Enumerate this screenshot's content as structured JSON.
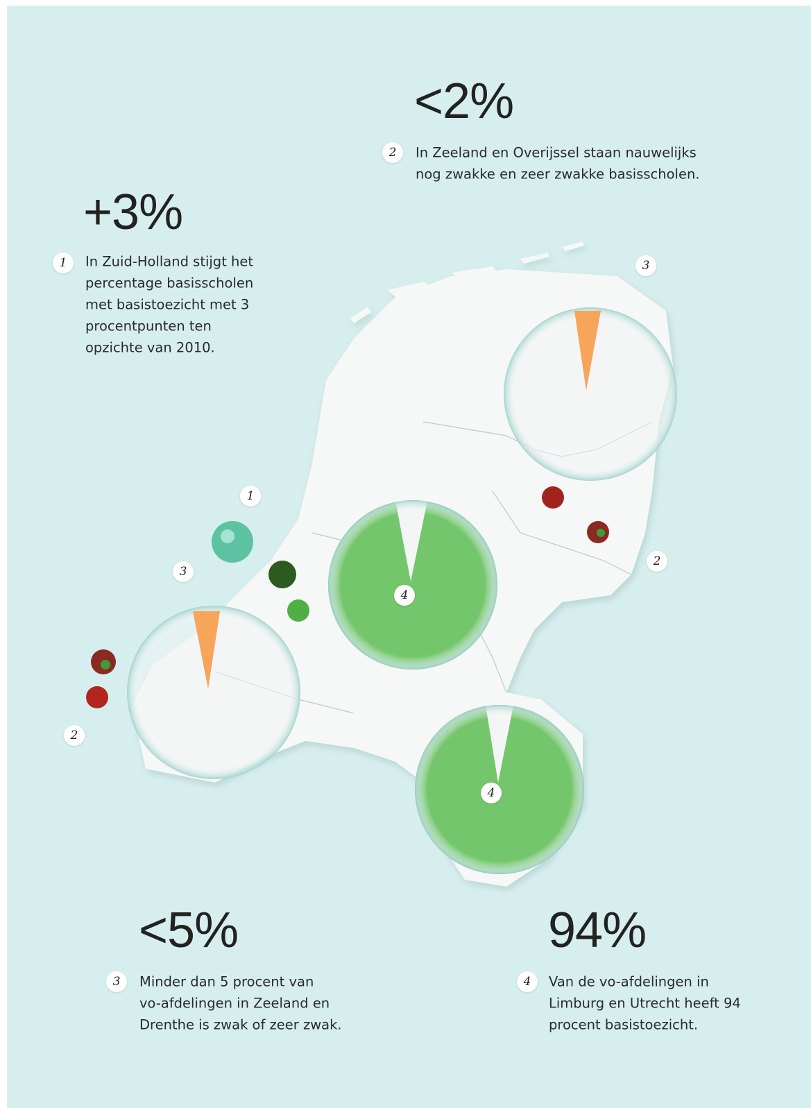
{
  "callouts": [
    {
      "figure": "+3%",
      "marker": "1",
      "lines": [
        "In Zuid-Holland stijgt het",
        "percentage basisscholen",
        "met basistoezicht met 3",
        "procentpunten ten",
        "opzichte van 2010."
      ]
    },
    {
      "figure": "<2%",
      "marker": "2",
      "lines": [
        "In Zeeland en Overijssel staan nauwelijks",
        "nog zwakke en zeer zwakke basisscholen."
      ]
    },
    {
      "figure": "<5%",
      "marker": "3",
      "lines": [
        "Minder dan 5 procent van",
        "vo-afdelingen in Zeeland en",
        "Drenthe is zwak of zeer zwak."
      ]
    },
    {
      "figure": "94%",
      "marker": "4",
      "lines": [
        "Van de vo-afdelingen in",
        "Limburg en Utrecht heeft 94",
        "procent basistoezicht."
      ]
    }
  ],
  "map_markers": [
    "3",
    "1",
    "3",
    "4",
    "2",
    "2",
    "4"
  ]
}
